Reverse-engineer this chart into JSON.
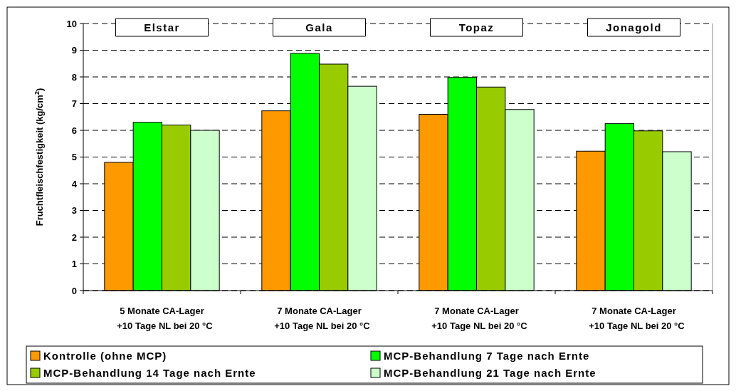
{
  "chart_data": {
    "type": "bar",
    "ylabel": "Fruchtfleischfestigkeit (kg/cm$^{2}$)",
    "categories": [
      "5 Monate CA-Lager\n+10 Tage NL bei 20 °C",
      "7 Monate CA-Lager\n+10 Tage NL bei 20 °C",
      "7 Monate CA-Lager\n+10 Tage NL bei 20 °C",
      "7 Monate CA-Lager\n+10 Tage NL bei 20 °C"
    ],
    "series": [
      {
        "name": "Kontrolle (ohne MCP)",
        "color": "#ff9900",
        "values": [
          4.8,
          6.73,
          6.6,
          5.22
        ]
      },
      {
        "name": "MCP-Behandlung 7 Tage nach Ernte",
        "color": "#00ff00",
        "values": [
          6.3,
          8.88,
          7.98,
          6.25
        ]
      },
      {
        "name": "MCP-Behandlung 14 Tage nach Ernte",
        "color": "#99cc00",
        "values": [
          6.2,
          8.48,
          7.62,
          5.98
        ]
      },
      {
        "name": "MCP-Behandlung 21 Tage nach Ernte",
        "color": "#ccffcc",
        "values": [
          6.0,
          7.65,
          6.78,
          5.2
        ]
      }
    ],
    "annotations": [
      "Elstar",
      "Gala",
      "Topaz",
      "Jonagold"
    ],
    "ylim": [
      0,
      10
    ],
    "yticks": [
      0,
      1,
      2,
      3,
      4,
      5,
      6,
      7,
      8,
      9,
      10
    ],
    "grid": "y",
    "legend": "bottom"
  }
}
